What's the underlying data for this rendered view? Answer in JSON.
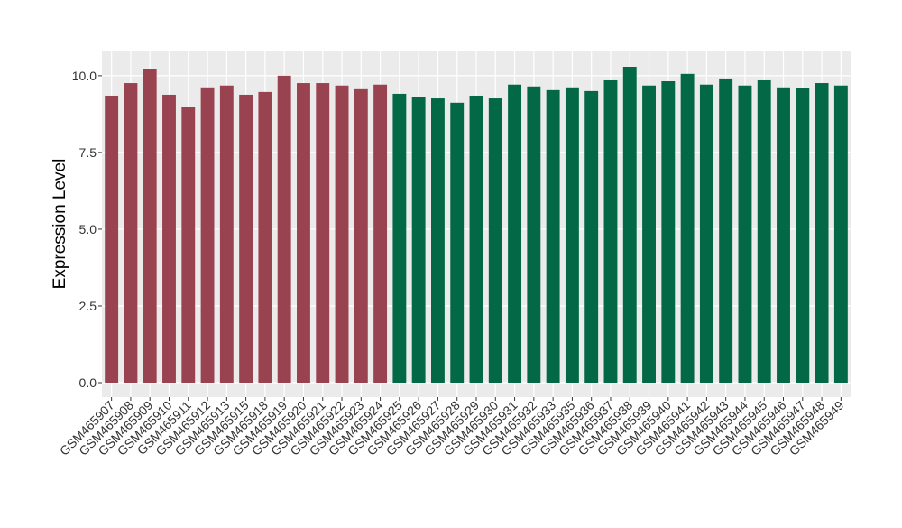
{
  "chart_data": {
    "type": "bar",
    "y_label": "Expression Level",
    "categories": [
      "GSM465907",
      "GSM465908",
      "GSM465909",
      "GSM465910",
      "GSM465911",
      "GSM465912",
      "GSM465913",
      "GSM465915",
      "GSM465918",
      "GSM465919",
      "GSM465920",
      "GSM465921",
      "GSM465922",
      "GSM465923",
      "GSM465924",
      "GSM465925",
      "GSM465926",
      "GSM465927",
      "GSM465928",
      "GSM465929",
      "GSM465930",
      "GSM465931",
      "GSM465932",
      "GSM465933",
      "GSM465935",
      "GSM465936",
      "GSM465937",
      "GSM465938",
      "GSM465939",
      "GSM465940",
      "GSM465941",
      "GSM465942",
      "GSM465943",
      "GSM465944",
      "GSM465945",
      "GSM465946",
      "GSM465947",
      "GSM465948",
      "GSM465949"
    ],
    "values": [
      9.35,
      9.76,
      10.21,
      9.38,
      8.97,
      9.62,
      9.68,
      9.38,
      9.47,
      10.0,
      9.76,
      9.76,
      9.68,
      9.56,
      9.71,
      9.41,
      9.32,
      9.26,
      9.12,
      9.35,
      9.26,
      9.71,
      9.65,
      9.53,
      9.62,
      9.5,
      9.85,
      10.29,
      9.68,
      9.82,
      10.06,
      9.71,
      9.91,
      9.68,
      9.85,
      9.62,
      9.59,
      9.76,
      9.68
    ],
    "colors": [
      "#9a4350",
      "#9a4350",
      "#9a4350",
      "#9a4350",
      "#9a4350",
      "#9a4350",
      "#9a4350",
      "#9a4350",
      "#9a4350",
      "#9a4350",
      "#9a4350",
      "#9a4350",
      "#9a4350",
      "#9a4350",
      "#9a4350",
      "#036846",
      "#036846",
      "#036846",
      "#036846",
      "#036846",
      "#036846",
      "#036846",
      "#036846",
      "#036846",
      "#036846",
      "#036846",
      "#036846",
      "#036846",
      "#036846",
      "#036846",
      "#036846",
      "#036846",
      "#036846",
      "#036846",
      "#036846",
      "#036846",
      "#036846",
      "#036846",
      "#036846"
    ],
    "ylim": [
      -0.47,
      10.79
    ],
    "yticks": [
      {
        "value": 0,
        "label": "0.0"
      },
      2.5,
      {
        "value": 5,
        "label": "5.0"
      },
      7.5,
      {
        "value": 10,
        "label": "10.0"
      }
    ],
    "grid": true
  }
}
